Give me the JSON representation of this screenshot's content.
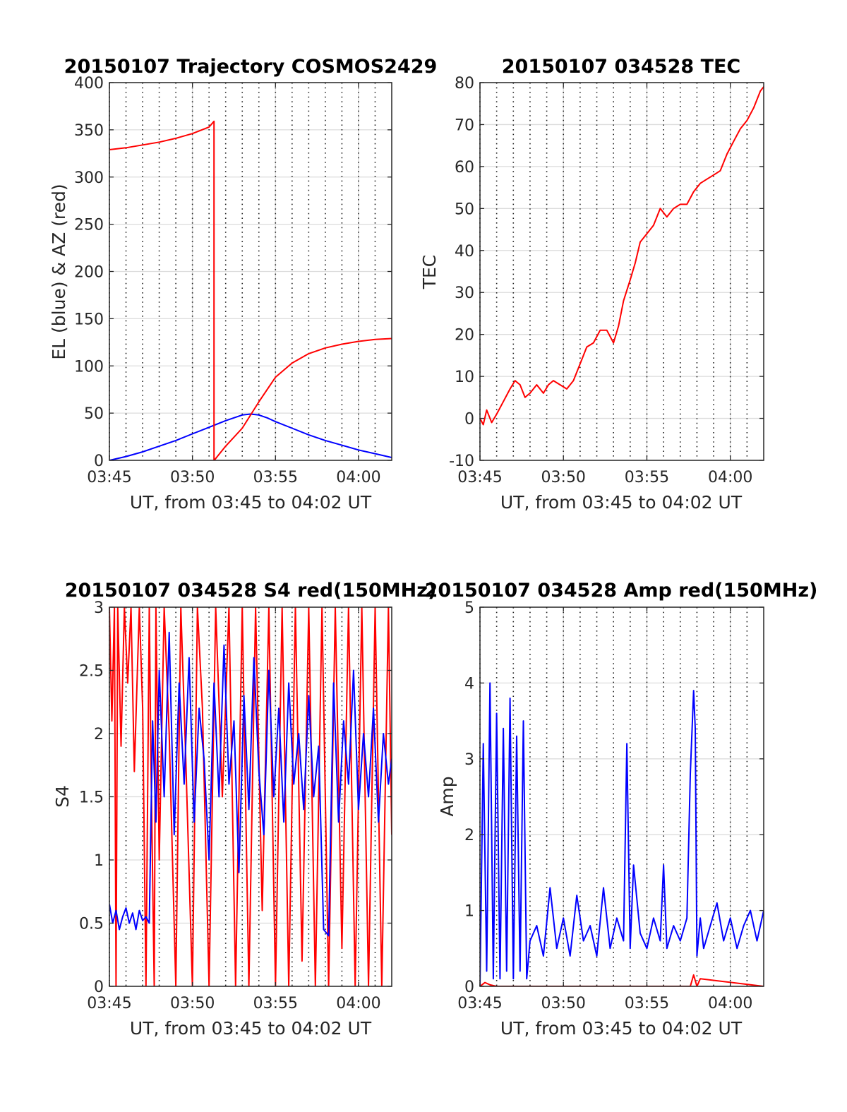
{
  "chart_data": [
    {
      "type": "line",
      "title": "20150107 Trajectory COSMOS2429",
      "xlabel": "UT, from 03:45 to 04:02 UT",
      "ylabel": "EL (blue) & AZ (red)",
      "xlim": [
        0,
        17
      ],
      "ylim": [
        0,
        400
      ],
      "x_ticks": [
        0,
        5,
        10,
        15
      ],
      "x_tick_labels": [
        "03:45",
        "03:50",
        "03:55",
        "04:00"
      ],
      "y_ticks": [
        0,
        50,
        100,
        150,
        200,
        250,
        300,
        350,
        400
      ],
      "y_tick_labels": [
        "0",
        "50",
        "100",
        "150",
        "200",
        "250",
        "300",
        "350",
        "400"
      ],
      "minor_grid_x": [
        1,
        2,
        3,
        4,
        6,
        7,
        8,
        9,
        11,
        12,
        13,
        14,
        16
      ],
      "grid": true,
      "series": [
        {
          "name": "EL",
          "color": "#0000ff",
          "x": [
            0,
            1,
            2,
            3,
            4,
            5,
            6,
            7,
            8,
            8.5,
            9,
            9.5,
            10,
            11,
            12,
            13,
            14,
            15,
            16,
            17
          ],
          "y": [
            0,
            4,
            9,
            15,
            21,
            28,
            35,
            42,
            48,
            49,
            48,
            45,
            41,
            34,
            27,
            21,
            16,
            11,
            7,
            3
          ]
        },
        {
          "name": "AZ",
          "color": "#ff0000",
          "x": [
            0,
            1,
            2,
            3,
            4,
            5,
            6,
            6.3,
            6.3,
            6.31,
            7,
            8,
            9,
            10,
            11,
            12,
            13,
            14,
            15,
            16,
            17
          ],
          "y": [
            329,
            331,
            334,
            337,
            341,
            346,
            353,
            359,
            0,
            0,
            15,
            34,
            62,
            88,
            103,
            113,
            119,
            123,
            126,
            128,
            129
          ]
        }
      ]
    },
    {
      "type": "line",
      "title": "20150107 034528 TEC",
      "xlabel": "UT, from 03:45 to 04:02 UT",
      "ylabel": "TEC",
      "xlim": [
        0,
        17
      ],
      "ylim": [
        -10,
        80
      ],
      "x_ticks": [
        0,
        5,
        10,
        15
      ],
      "x_tick_labels": [
        "03:45",
        "03:50",
        "03:55",
        "04:00"
      ],
      "y_ticks": [
        -10,
        0,
        10,
        20,
        30,
        40,
        50,
        60,
        70,
        80
      ],
      "y_tick_labels": [
        "-10",
        "0",
        "10",
        "20",
        "30",
        "40",
        "50",
        "60",
        "70",
        "80"
      ],
      "minor_grid_x": [
        1,
        2,
        3,
        4,
        6,
        7,
        8,
        9,
        11,
        12,
        13,
        14,
        16
      ],
      "grid": true,
      "series": [
        {
          "name": "TEC",
          "color": "#ff0000",
          "x": [
            0,
            0.2,
            0.4,
            0.7,
            1.0,
            1.4,
            1.8,
            2.1,
            2.4,
            2.7,
            3.0,
            3.4,
            3.8,
            4.1,
            4.4,
            4.8,
            5.2,
            5.6,
            6.0,
            6.4,
            6.8,
            7.2,
            7.6,
            8.0,
            8.3,
            8.6,
            9.0,
            9.3,
            9.6,
            10.0,
            10.4,
            10.8,
            11.2,
            11.6,
            12.0,
            12.4,
            12.8,
            13.2,
            13.6,
            14.0,
            14.4,
            14.8,
            15.2,
            15.6,
            16.0,
            16.4,
            16.8,
            17.0
          ],
          "y": [
            0,
            -1.5,
            2,
            -1,
            1,
            4,
            7,
            9,
            8,
            5,
            6,
            8,
            6,
            8,
            9,
            8,
            7,
            9,
            13,
            17,
            18,
            21,
            21,
            18,
            22,
            28,
            33,
            37,
            42,
            44,
            46,
            50,
            48,
            50,
            51,
            51,
            54,
            56,
            57,
            58,
            59,
            63,
            66,
            69,
            71,
            74,
            78,
            79
          ]
        }
      ]
    },
    {
      "type": "line",
      "title": "20150107 034528 S4 red(150MHz)",
      "xlabel": "UT, from 03:45 to 04:02 UT",
      "ylabel": "S4",
      "xlim": [
        0,
        17
      ],
      "ylim": [
        0,
        3
      ],
      "x_ticks": [
        0,
        5,
        10,
        15
      ],
      "x_tick_labels": [
        "03:45",
        "03:50",
        "03:55",
        "04:00"
      ],
      "y_ticks": [
        0,
        0.5,
        1,
        1.5,
        2,
        2.5,
        3
      ],
      "y_tick_labels": [
        "0",
        "0.5",
        "1",
        "1.5",
        "2",
        "2.5",
        "3"
      ],
      "minor_grid_x": [
        1,
        2,
        3,
        4,
        6,
        7,
        8,
        9,
        11,
        12,
        13,
        14,
        16
      ],
      "grid": true,
      "series": [
        {
          "name": "S4 red",
          "color": "#ff0000",
          "x": [
            0,
            0.15,
            0.3,
            0.4,
            0.5,
            0.7,
            0.9,
            1.1,
            1.3,
            1.5,
            1.8,
            2.0,
            2.2,
            2.4,
            2.5,
            2.7,
            2.8,
            3.0,
            3.3,
            3.6,
            4.0,
            4.3,
            4.6,
            5.0,
            5.3,
            5.6,
            6.0,
            6.4,
            6.8,
            7.2,
            7.6,
            8.0,
            8.4,
            8.8,
            9.2,
            9.6,
            10.0,
            10.4,
            10.8,
            11.2,
            11.6,
            12.0,
            12.4,
            12.8,
            13.2,
            13.6,
            14.0,
            14.4,
            14.8,
            15.2,
            15.6,
            16.0,
            16.4,
            16.8,
            17.0
          ],
          "y": [
            3,
            2.1,
            3,
            0,
            3,
            1.9,
            3,
            2.4,
            3,
            1.7,
            3,
            2.2,
            0,
            3,
            1.8,
            0,
            3,
            1.0,
            3,
            2.0,
            0,
            3,
            1.8,
            0,
            3,
            2.2,
            0,
            3,
            1.5,
            3,
            0,
            3,
            0,
            3,
            0.6,
            3,
            0,
            3,
            0,
            3,
            0.2,
            3,
            0,
            3,
            0,
            3,
            0.3,
            3,
            0,
            3,
            0,
            3,
            0,
            3,
            1.2
          ]
        },
        {
          "name": "S4 blue",
          "color": "#0000ff",
          "x": [
            0,
            0.2,
            0.4,
            0.6,
            0.8,
            1.0,
            1.2,
            1.4,
            1.6,
            1.8,
            2.0,
            2.2,
            2.4,
            2.6,
            2.8,
            3.0,
            3.3,
            3.6,
            3.9,
            4.2,
            4.5,
            4.8,
            5.1,
            5.4,
            5.7,
            6.0,
            6.3,
            6.6,
            6.9,
            7.2,
            7.5,
            7.8,
            8.1,
            8.4,
            8.7,
            9.0,
            9.3,
            9.6,
            9.9,
            10.2,
            10.5,
            10.8,
            11.1,
            11.4,
            11.7,
            12.0,
            12.3,
            12.6,
            12.9,
            13.2,
            13.5,
            13.8,
            14.1,
            14.4,
            14.7,
            15.0,
            15.3,
            15.6,
            15.9,
            16.2,
            16.5,
            16.8,
            17.0
          ],
          "y": [
            0.65,
            0.5,
            0.6,
            0.45,
            0.55,
            0.62,
            0.5,
            0.58,
            0.45,
            0.6,
            0.52,
            0.55,
            0.5,
            2.1,
            1.3,
            2.5,
            1.5,
            2.8,
            1.2,
            2.4,
            1.6,
            2.6,
            1.3,
            2.2,
            1.8,
            1.0,
            2.4,
            1.5,
            2.7,
            1.6,
            2.1,
            0.9,
            2.3,
            1.4,
            2.6,
            1.7,
            1.2,
            2.5,
            1.5,
            2.2,
            1.3,
            2.4,
            1.6,
            2.0,
            1.4,
            2.3,
            1.5,
            1.9,
            0.45,
            0.4,
            2.4,
            1.3,
            2.1,
            1.6,
            2.5,
            1.4,
            2.0,
            1.5,
            2.2,
            1.3,
            2.0,
            1.6,
            1.8
          ]
        }
      ]
    },
    {
      "type": "line",
      "title": "20150107 034528 Amp red(150MHz)",
      "xlabel": "UT, from 03:45 to 04:02 UT",
      "ylabel": "Amp",
      "xlim": [
        0,
        17
      ],
      "ylim": [
        0,
        5
      ],
      "x_ticks": [
        0,
        5,
        10,
        15
      ],
      "x_tick_labels": [
        "03:45",
        "03:50",
        "03:55",
        "04:00"
      ],
      "y_ticks": [
        0,
        1,
        2,
        3,
        4,
        5
      ],
      "y_tick_labels": [
        "0",
        "1",
        "2",
        "3",
        "4",
        "5"
      ],
      "minor_grid_x": [
        1,
        2,
        3,
        4,
        6,
        7,
        8,
        9,
        11,
        12,
        13,
        14,
        16
      ],
      "grid": true,
      "series": [
        {
          "name": "Amp red",
          "color": "#ff0000",
          "x": [
            0,
            0.3,
            0.6,
            1.0,
            10.5,
            12.6,
            12.8,
            13.0,
            13.2,
            17.0
          ],
          "y": [
            0,
            0.05,
            0.02,
            0,
            0,
            0,
            0.15,
            0,
            0.1,
            0
          ]
        },
        {
          "name": "Amp blue",
          "color": "#0000ff",
          "x": [
            0,
            0.2,
            0.4,
            0.6,
            0.8,
            1.0,
            1.2,
            1.4,
            1.6,
            1.8,
            2.0,
            2.2,
            2.4,
            2.6,
            2.8,
            3.0,
            3.4,
            3.8,
            4.2,
            4.6,
            5.0,
            5.4,
            5.8,
            6.2,
            6.6,
            7.0,
            7.4,
            7.8,
            8.2,
            8.6,
            8.8,
            9.0,
            9.2,
            9.6,
            10.0,
            10.4,
            10.8,
            11.0,
            11.2,
            11.6,
            12.0,
            12.4,
            12.6,
            12.8,
            12.9,
            13.0,
            13.2,
            13.4,
            13.8,
            14.2,
            14.6,
            15.0,
            15.4,
            15.8,
            16.2,
            16.6,
            17.0
          ],
          "y": [
            0,
            3.2,
            0.2,
            4.0,
            0.1,
            3.6,
            0.1,
            3.4,
            0.2,
            3.8,
            0.1,
            3.3,
            0.2,
            3.5,
            0.1,
            0.6,
            0.8,
            0.4,
            1.3,
            0.5,
            0.9,
            0.4,
            1.2,
            0.6,
            0.8,
            0.4,
            1.3,
            0.5,
            0.9,
            0.6,
            3.2,
            0.5,
            1.6,
            0.7,
            0.5,
            0.9,
            0.6,
            1.6,
            0.5,
            0.8,
            0.6,
            0.9,
            2.8,
            3.9,
            3.4,
            0.4,
            0.9,
            0.5,
            0.8,
            1.1,
            0.6,
            0.9,
            0.5,
            0.8,
            1.0,
            0.6,
            1.0
          ]
        }
      ]
    }
  ]
}
